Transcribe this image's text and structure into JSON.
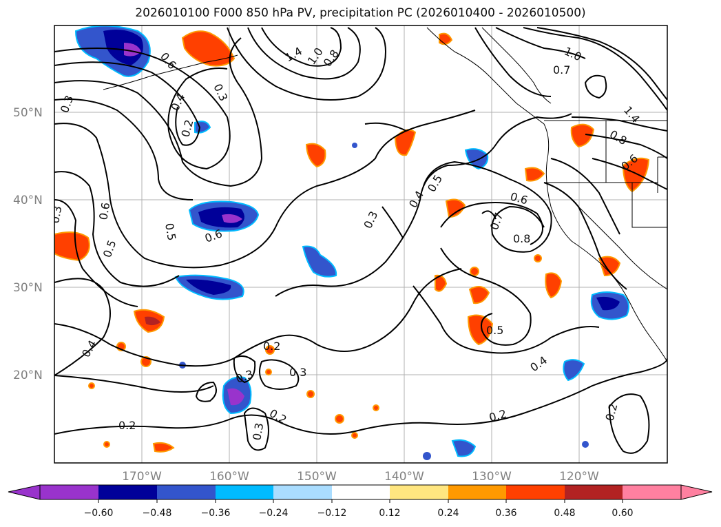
{
  "title": "2026010100 F000 850 hPa PV, precipitation PC (2026010400 - 2026010500)",
  "lat_ticks": [
    "50°N",
    "40°N",
    "30°N",
    "20°N"
  ],
  "lon_ticks": [
    "170°W",
    "160°W",
    "150°W",
    "140°W",
    "130°W",
    "120°W"
  ],
  "colorbar": {
    "colors": [
      "#9933cc",
      "#000099",
      "#3355cc",
      "#00bbff",
      "#aaddff",
      "#ffffff",
      "#ffe680",
      "#ff9900",
      "#ff4000",
      "#b22222",
      "#ff80a0"
    ],
    "ticks": [
      "−0.60",
      "−0.48",
      "−0.36",
      "−0.24",
      "−0.12",
      "0.12",
      "0.24",
      "0.36",
      "0.48",
      "0.60"
    ]
  },
  "contour_labels": [
    "0.6",
    "0.3",
    "1.4",
    "1.0",
    "0.8",
    "1.0",
    "0.7",
    "1.4",
    "0.4",
    "0.3",
    "0.2",
    "0.8",
    "0.6",
    "0.3",
    "0.6",
    "0.5",
    "0.5",
    "0.6",
    "0.3",
    "0.4",
    "0.5",
    "0.6",
    "0.7",
    "0.8",
    "0.5",
    "0.4",
    "0.2",
    "0.3",
    "0.3",
    "0.2",
    "0.3",
    "0.2",
    "0.2",
    "0.2",
    "0.4"
  ]
}
